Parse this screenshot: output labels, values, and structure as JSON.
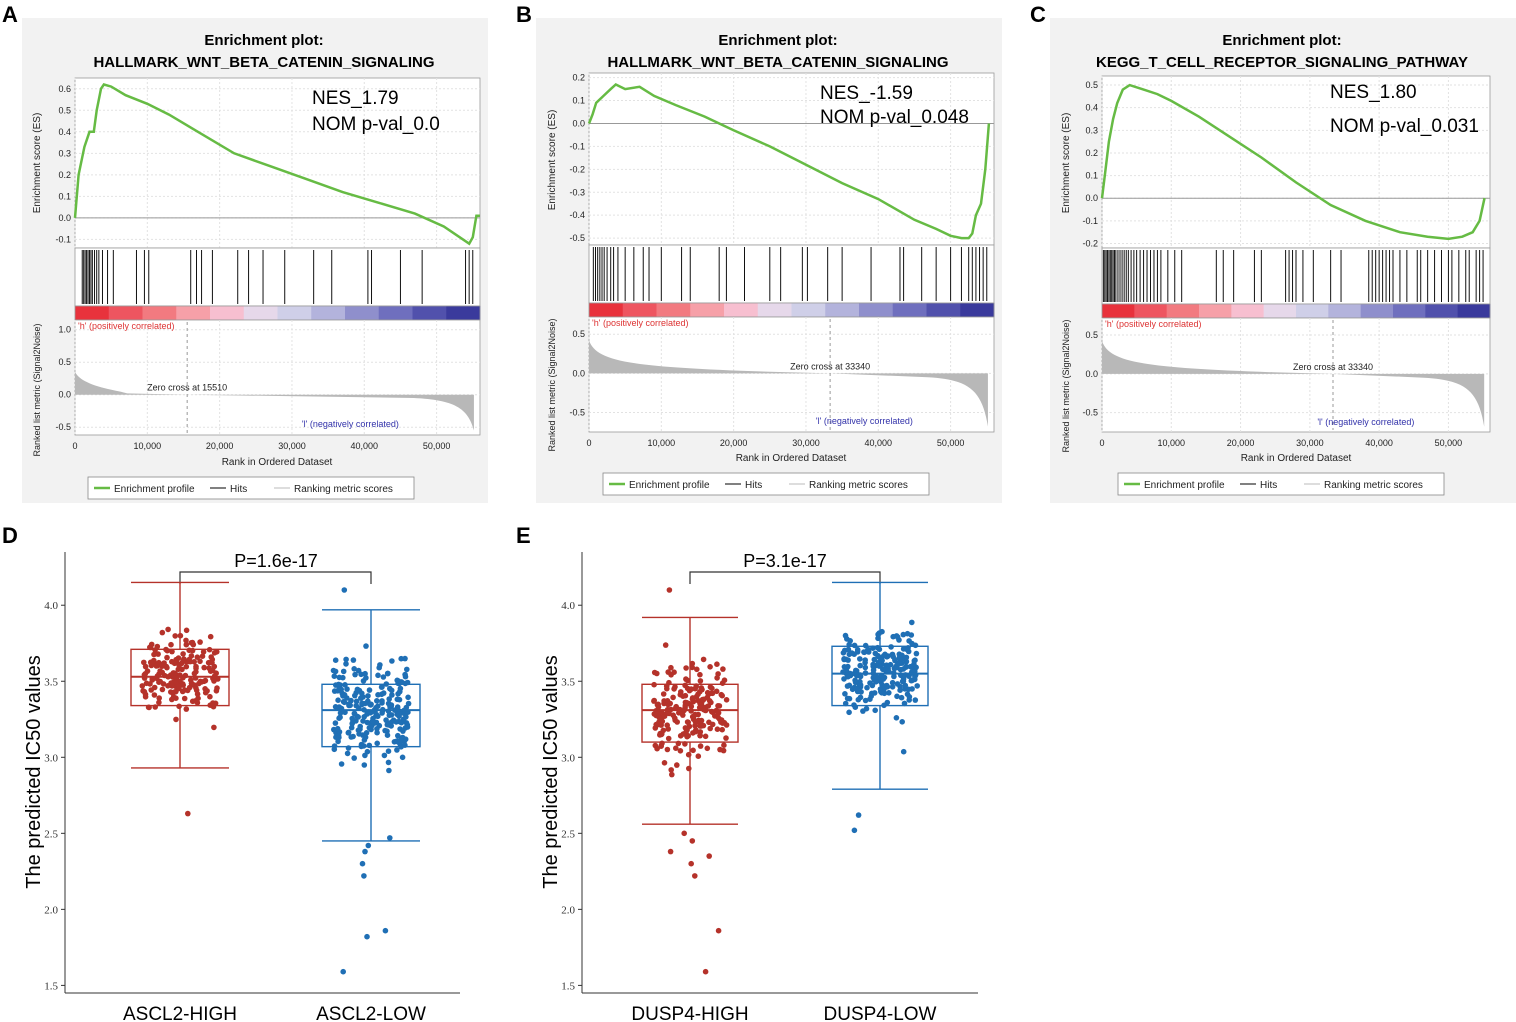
{
  "chart_data": [
    {
      "id": "A",
      "type": "line",
      "title_line1": "Enrichment plot:",
      "title_line2": "HALLMARK_WNT_BETA_CATENIN_SIGNALING",
      "nes": "NES_1.79",
      "pval": "NOM p-val_0.0",
      "es_ylabel": "Enrichment score (ES)",
      "es_yticks": [
        0.6,
        0.5,
        0.4,
        0.3,
        0.2,
        0.1,
        0.0,
        -0.1
      ],
      "es_ylim": [
        -0.14,
        0.65
      ],
      "es_curve": [
        [
          0,
          0.0
        ],
        [
          500,
          0.2
        ],
        [
          1300,
          0.33
        ],
        [
          2000,
          0.4
        ],
        [
          2600,
          0.4
        ],
        [
          3000,
          0.5
        ],
        [
          3600,
          0.6
        ],
        [
          4000,
          0.62
        ],
        [
          5000,
          0.61
        ],
        [
          7000,
          0.57
        ],
        [
          10000,
          0.53
        ],
        [
          13000,
          0.48
        ],
        [
          17000,
          0.4
        ],
        [
          22000,
          0.3
        ],
        [
          27000,
          0.24
        ],
        [
          32000,
          0.18
        ],
        [
          37000,
          0.12
        ],
        [
          42000,
          0.07
        ],
        [
          47000,
          0.02
        ],
        [
          51000,
          -0.04
        ],
        [
          54500,
          -0.12
        ],
        [
          55000,
          -0.09
        ],
        [
          55500,
          0.01
        ],
        [
          56000,
          0.01
        ]
      ],
      "hits": [
        1000,
        1200,
        1400,
        1600,
        1800,
        2000,
        2200,
        2400,
        2700,
        3000,
        3300,
        3800,
        4500,
        5300,
        8500,
        9600,
        10200,
        16000,
        16800,
        17500,
        19000,
        22500,
        24000,
        26000,
        29000,
        33000,
        35500,
        40500,
        41000,
        45000,
        48000,
        54000,
        54500,
        55000
      ],
      "metric_ylabel": "Ranked list metric (Signal2Noise)",
      "metric_yticks": [
        1.0,
        0.5,
        0.0,
        -0.5
      ],
      "metric_ylim": [
        -0.62,
        1.15
      ],
      "metric_start": 0.35,
      "metric_end": -0.55,
      "zero_cross": "Zero cross at 15510",
      "zero_cross_x": 15510,
      "pos_label": "'h' (positively correlated)",
      "neg_label": "'l' (negatively correlated)",
      "xlabel": "Rank in Ordered Dataset",
      "xticks": [
        0,
        10000,
        20000,
        30000,
        40000,
        50000
      ],
      "xtick_labels": [
        "0",
        "10,000",
        "20,000",
        "30,000",
        "40,000",
        "50,000"
      ],
      "xlim": [
        0,
        56000
      ],
      "legend": [
        "Enrichment profile",
        "Hits",
        "Ranking metric scores"
      ]
    },
    {
      "id": "B",
      "type": "line",
      "title_line1": "Enrichment plot:",
      "title_line2": "HALLMARK_WNT_BETA_CATENIN_SIGNALING",
      "nes": "NES_-1.59",
      "pval": "NOM p-val_0.048",
      "es_ylabel": "Enrichment score (ES)",
      "es_yticks": [
        0.2,
        0.1,
        0.0,
        -0.1,
        -0.2,
        -0.3,
        -0.4,
        -0.5
      ],
      "es_ylim": [
        -0.53,
        0.22
      ],
      "es_curve": [
        [
          0,
          0.0
        ],
        [
          500,
          0.04
        ],
        [
          1000,
          0.09
        ],
        [
          2000,
          0.12
        ],
        [
          3000,
          0.15
        ],
        [
          3700,
          0.17
        ],
        [
          5000,
          0.15
        ],
        [
          7000,
          0.16
        ],
        [
          9000,
          0.12
        ],
        [
          12000,
          0.08
        ],
        [
          16000,
          0.03
        ],
        [
          20000,
          -0.03
        ],
        [
          25000,
          -0.1
        ],
        [
          30000,
          -0.18
        ],
        [
          35000,
          -0.26
        ],
        [
          40000,
          -0.33
        ],
        [
          45000,
          -0.42
        ],
        [
          48000,
          -0.46
        ],
        [
          50000,
          -0.49
        ],
        [
          51500,
          -0.5
        ],
        [
          52500,
          -0.5
        ],
        [
          53000,
          -0.48
        ],
        [
          53500,
          -0.4
        ],
        [
          54200,
          -0.35
        ],
        [
          54800,
          -0.2
        ],
        [
          55300,
          0.0
        ]
      ],
      "hits": [
        600,
        900,
        1200,
        1500,
        1800,
        2100,
        2500,
        3000,
        3400,
        4000,
        5000,
        6200,
        7500,
        8300,
        10000,
        12800,
        14000,
        18000,
        19000,
        21500,
        25000,
        26500,
        29500,
        30200,
        33000,
        35000,
        39000,
        43000,
        43500,
        46000,
        48000,
        50000,
        51500,
        52500,
        53000,
        53500,
        54000,
        54500,
        55000
      ],
      "metric_ylabel": "Ranked list metric (Signal2Noise)",
      "metric_yticks": [
        0.5,
        0.0,
        -0.5
      ],
      "metric_ylim": [
        -0.75,
        0.72
      ],
      "metric_start": 0.42,
      "metric_end": -0.68,
      "zero_cross": "Zero cross at 33340",
      "zero_cross_x": 33340,
      "pos_label": "'h' (positively correlated)",
      "neg_label": "'l' (negatively correlated)",
      "xlabel": "Rank in Ordered Dataset",
      "xticks": [
        0,
        10000,
        20000,
        30000,
        40000,
        50000
      ],
      "xtick_labels": [
        "0",
        "10,000",
        "20,000",
        "30,000",
        "40,000",
        "50,000"
      ],
      "xlim": [
        0,
        56000
      ],
      "legend": [
        "Enrichment profile",
        "Hits",
        "Ranking metric scores"
      ]
    },
    {
      "id": "C",
      "type": "line",
      "title_line1": "Enrichment plot:",
      "title_line2": "KEGG_T_CELL_RECEPTOR_SIGNALING_PATHWAY",
      "nes": "NES_1.80",
      "pval": "NOM p-val_0.031",
      "es_ylabel": "Enrichment score (ES)",
      "es_yticks": [
        0.5,
        0.4,
        0.3,
        0.2,
        0.1,
        0.0,
        -0.1,
        -0.2
      ],
      "es_ylim": [
        -0.22,
        0.54
      ],
      "es_curve": [
        [
          0,
          0.0
        ],
        [
          400,
          0.1
        ],
        [
          1000,
          0.25
        ],
        [
          1600,
          0.35
        ],
        [
          2200,
          0.42
        ],
        [
          3000,
          0.48
        ],
        [
          4000,
          0.5
        ],
        [
          6000,
          0.48
        ],
        [
          8000,
          0.46
        ],
        [
          10000,
          0.43
        ],
        [
          14000,
          0.36
        ],
        [
          18000,
          0.28
        ],
        [
          23000,
          0.18
        ],
        [
          28000,
          0.07
        ],
        [
          33000,
          -0.03
        ],
        [
          38000,
          -0.1
        ],
        [
          43000,
          -0.15
        ],
        [
          47000,
          -0.17
        ],
        [
          50000,
          -0.18
        ],
        [
          52000,
          -0.17
        ],
        [
          53500,
          -0.15
        ],
        [
          54500,
          -0.1
        ],
        [
          55200,
          0.0
        ]
      ],
      "hits": [
        200,
        400,
        600,
        800,
        1000,
        1200,
        1400,
        1600,
        1800,
        2000,
        2300,
        2600,
        2900,
        3200,
        3500,
        3800,
        4200,
        4600,
        5000,
        5500,
        6000,
        6500,
        7000,
        7500,
        8000,
        8500,
        9500,
        10500,
        11500,
        16500,
        17500,
        19000,
        22000,
        23000,
        26500,
        27000,
        27500,
        28000,
        29000,
        30500,
        33000,
        34500,
        38500,
        39000,
        39500,
        40000,
        40500,
        41000,
        41500,
        42000,
        43000,
        44000,
        45500,
        46000,
        47000,
        48000,
        49000,
        50000,
        50500,
        51500,
        52500,
        53000,
        54000,
        54500,
        55000
      ],
      "metric_ylabel": "Ranked list metric (Signal2Noise)",
      "metric_yticks": [
        0.5,
        0.0,
        -0.5
      ],
      "metric_ylim": [
        -0.75,
        0.72
      ],
      "metric_start": 0.42,
      "metric_end": -0.68,
      "zero_cross": "Zero cross at 33340",
      "zero_cross_x": 33340,
      "pos_label": "'h' (positively correlated)",
      "neg_label": "'l' (negatively correlated)",
      "xlabel": "Rank in Ordered Dataset",
      "xticks": [
        0,
        10000,
        20000,
        30000,
        40000,
        50000
      ],
      "xtick_labels": [
        "0",
        "10,000",
        "20,000",
        "30,000",
        "40,000",
        "50,000"
      ],
      "xlim": [
        0,
        56000
      ],
      "legend": [
        "Enrichment profile",
        "Hits",
        "Ranking metric scores"
      ]
    },
    {
      "id": "D",
      "type": "box",
      "ylabel": "The predicted IC50 values",
      "yticks": [
        1.5,
        2.0,
        2.5,
        3.0,
        3.5,
        4.0
      ],
      "ytick_labels": [
        "1.5",
        "2.0",
        "2.5",
        "3.0",
        "3.5",
        "4.0"
      ],
      "ylim": [
        1.45,
        4.35
      ],
      "pvalue": "P=1.6e-17",
      "groups": [
        {
          "name": "ASCL2-HIGH",
          "color": "#b5322a",
          "min": 2.93,
          "q1": 3.34,
          "median": 3.53,
          "q3": 3.71,
          "max": 4.15,
          "n": 190,
          "spread": 0.24,
          "outliers": [
            2.63
          ]
        },
        {
          "name": "ASCL2-LOW",
          "color": "#1f6fb5",
          "min": 2.45,
          "q1": 3.07,
          "median": 3.31,
          "q3": 3.48,
          "max": 3.97,
          "n": 240,
          "spread": 0.3,
          "outliers": [
            2.42,
            2.38,
            2.3,
            2.22,
            1.86,
            1.82,
            1.59,
            4.1,
            2.47
          ]
        }
      ]
    },
    {
      "id": "E",
      "type": "box",
      "ylabel": "The predicted IC50 values",
      "yticks": [
        1.5,
        2.0,
        2.5,
        3.0,
        3.5,
        4.0
      ],
      "ytick_labels": [
        "1.5",
        "2.0",
        "2.5",
        "3.0",
        "3.5",
        "4.0"
      ],
      "ylim": [
        1.45,
        4.35
      ],
      "pvalue": "P=3.1e-17",
      "groups": [
        {
          "name": "DUSP4-HIGH",
          "color": "#b5322a",
          "min": 2.56,
          "q1": 3.1,
          "median": 3.31,
          "q3": 3.48,
          "max": 3.92,
          "n": 210,
          "spread": 0.3,
          "outliers": [
            2.5,
            2.45,
            2.38,
            2.35,
            2.3,
            2.22,
            1.86,
            1.59,
            4.1
          ]
        },
        {
          "name": "DUSP4-LOW",
          "color": "#1f6fb5",
          "min": 2.79,
          "q1": 3.34,
          "median": 3.55,
          "q3": 3.73,
          "max": 4.15,
          "n": 220,
          "spread": 0.25,
          "outliers": [
            2.52,
            2.62
          ]
        }
      ]
    }
  ],
  "colors": {
    "es_line": "#66bb44",
    "metric_fill": "#b8b8b8",
    "pos_text": "#dd3333",
    "neg_text": "#3333aa",
    "panel_bg": "#f2f2f2"
  }
}
